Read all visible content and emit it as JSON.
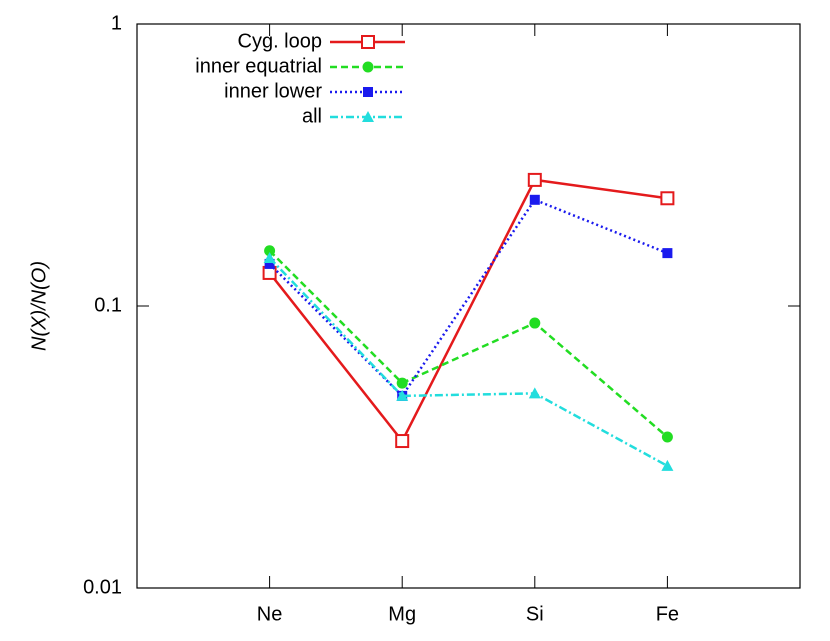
{
  "chart_data": {
    "type": "line",
    "y_label": "N(X)/N(O)",
    "categories": [
      "Ne",
      "Mg",
      "Si",
      "Fe"
    ],
    "log_y": true,
    "ylim": [
      0.01,
      1
    ],
    "yticks": [
      0.01,
      0.1,
      1
    ],
    "legend": "top-left",
    "series": [
      {
        "name": "Cyg. loop",
        "color": "#e41a1c",
        "dash": "solid",
        "marker": "open-square",
        "values": [
          0.131,
          0.0332,
          0.28,
          0.241
        ]
      },
      {
        "name": "inner equatrial",
        "color": "#22dd22",
        "dash": "dashed",
        "marker": "circle",
        "values": [
          0.157,
          0.0533,
          0.087,
          0.0343
        ]
      },
      {
        "name": "inner lower",
        "color": "#1a1aee",
        "dash": "dotted",
        "marker": "square",
        "values": [
          0.141,
          0.048,
          0.238,
          0.154
        ]
      },
      {
        "name": "all",
        "color": "#22dddd",
        "dash": "dash-dot",
        "marker": "triangle",
        "values": [
          0.148,
          0.048,
          0.049,
          0.0271
        ]
      }
    ]
  }
}
